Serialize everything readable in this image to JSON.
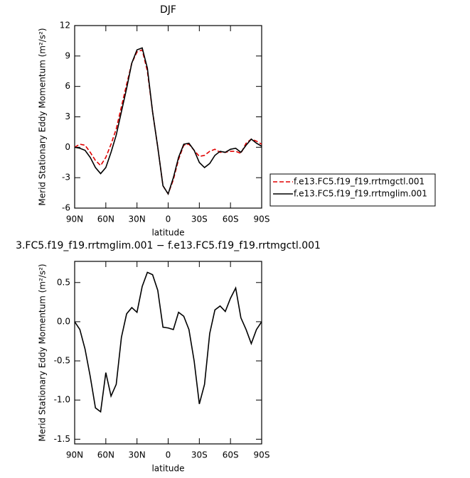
{
  "chart_data": [
    {
      "type": "line",
      "title": "DJF",
      "ylabel": "Merid Stationary Eddy Momentum (m²/s²)",
      "xlabel": "latitude",
      "x": [
        90,
        85,
        80,
        75,
        70,
        65,
        60,
        55,
        50,
        45,
        40,
        35,
        30,
        25,
        20,
        15,
        10,
        5,
        0,
        -5,
        -10,
        -15,
        -20,
        -25,
        -30,
        -35,
        -40,
        -45,
        -50,
        -55,
        -60,
        -65,
        -70,
        -75,
        -80,
        -85,
        -90
      ],
      "xlim": [
        90,
        -90
      ],
      "xticks": [
        {
          "value": 90,
          "label": "90N"
        },
        {
          "value": 60,
          "label": "60N"
        },
        {
          "value": 30,
          "label": "30N"
        },
        0,
        {
          "value": -30,
          "label": "30S"
        },
        {
          "value": -60,
          "label": "60S"
        },
        {
          "value": -90,
          "label": "90S"
        }
      ],
      "ylim": [
        -6,
        12
      ],
      "yticks": [
        -6,
        -3,
        0,
        3,
        6,
        9,
        12
      ],
      "legend": "right",
      "series": [
        {
          "name": "f.e13.FC5.f19_f19.rrtmgctl.001",
          "color": "#e00000",
          "dashed": true,
          "values": [
            0,
            0.3,
            0.2,
            -0.5,
            -1.3,
            -1.8,
            -1.0,
            0.3,
            1.8,
            4.0,
            6.2,
            8.3,
            9.4,
            9.6,
            7.5,
            3.5,
            0,
            -3.8,
            -4.6,
            -3.2,
            -1.2,
            0.2,
            0.3,
            -0.3,
            -0.9,
            -0.8,
            -0.4,
            -0.2,
            -0.5,
            -0.5,
            -0.4,
            -0.4,
            -0.6,
            0.4,
            0.8,
            0.6,
            0.3
          ]
        },
        {
          "name": "f.e13.FC5.f19_f19.rrtmglim.001",
          "color": "#000000",
          "dashed": false,
          "values": [
            0,
            -0.1,
            -0.3,
            -1.0,
            -2.0,
            -2.6,
            -2.0,
            -0.5,
            1.2,
            3.5,
            5.8,
            8.3,
            9.6,
            9.8,
            7.8,
            3.5,
            0,
            -3.8,
            -4.6,
            -3.0,
            -1.0,
            0.3,
            0.4,
            -0.3,
            -1.5,
            -2.0,
            -1.6,
            -0.8,
            -0.4,
            -0.5,
            -0.2,
            -0.1,
            -0.5,
            0.2,
            0.8,
            0.4,
            0.1
          ]
        }
      ]
    },
    {
      "type": "line",
      "title": "3.FC5.f19_f19.rrtmglim.001 − f.e13.FC5.f19_f19.rrtmgctl.001",
      "ylabel": "Merid Stationary Eddy Momentum (m²/s²)",
      "xlabel": "latitude",
      "x": [
        90,
        85,
        80,
        75,
        70,
        65,
        60,
        55,
        50,
        45,
        40,
        35,
        30,
        25,
        20,
        15,
        10,
        5,
        0,
        -5,
        -10,
        -15,
        -20,
        -25,
        -30,
        -35,
        -40,
        -45,
        -50,
        -55,
        -60,
        -65,
        -70,
        -75,
        -80,
        -85,
        -90
      ],
      "xlim": [
        90,
        -90
      ],
      "xticks": [
        {
          "value": 90,
          "label": "90N"
        },
        {
          "value": 60,
          "label": "60N"
        },
        {
          "value": 30,
          "label": "30N"
        },
        0,
        {
          "value": -30,
          "label": "30S"
        },
        {
          "value": -60,
          "label": "60S"
        },
        {
          "value": -90,
          "label": "90S"
        }
      ],
      "ylim": [
        -1.56,
        0.77
      ],
      "yticks": [
        -1.5,
        {
          "value": -1,
          "label": "-1.0"
        },
        -0.5,
        {
          "value": 0,
          "label": "0.0"
        },
        0.5
      ],
      "series": [
        {
          "color": "#000000",
          "dashed": false,
          "values": [
            0.0,
            -0.1,
            -0.35,
            -0.7,
            -1.1,
            -1.15,
            -0.65,
            -0.95,
            -0.8,
            -0.2,
            0.1,
            0.18,
            0.12,
            0.45,
            0.63,
            0.6,
            0.4,
            -0.07,
            -0.08,
            -0.1,
            0.12,
            0.07,
            -0.1,
            -0.5,
            -1.05,
            -0.8,
            -0.15,
            0.15,
            0.2,
            0.13,
            0.3,
            0.43,
            0.05,
            -0.1,
            -0.28,
            -0.1,
            0.0
          ]
        }
      ]
    }
  ]
}
